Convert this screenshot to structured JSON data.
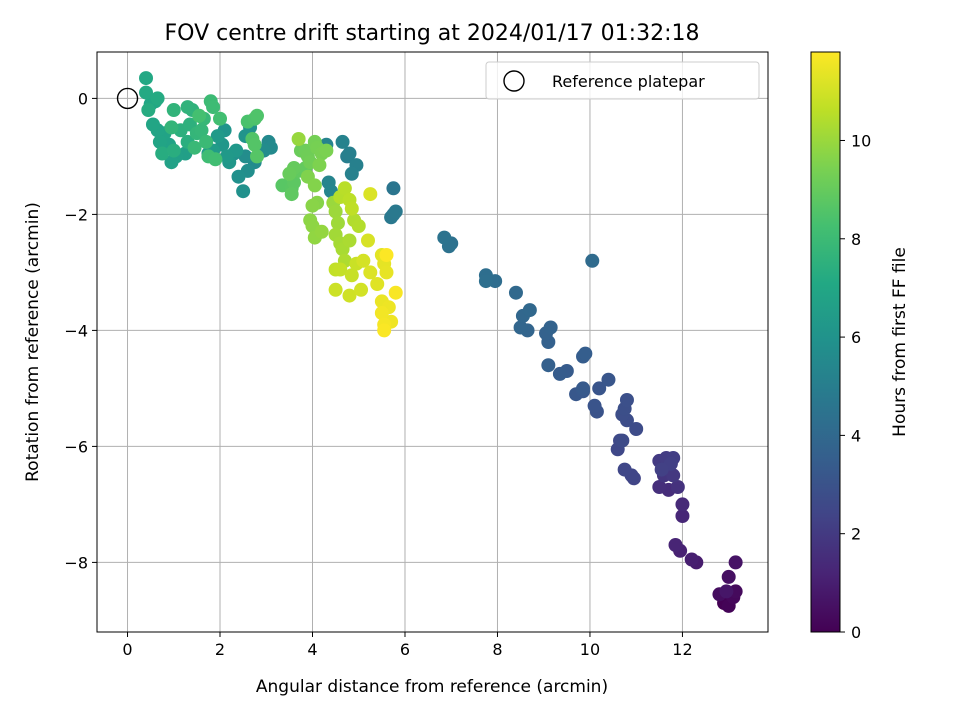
{
  "chart_data": {
    "type": "scatter",
    "title": "FOV centre drift starting at 2024/01/17 01:32:18",
    "xlabel": "Angular distance from reference (arcmin)",
    "ylabel": "Rotation from reference (arcmin)",
    "xlim": [
      -0.66,
      13.85
    ],
    "ylim": [
      -9.2,
      0.8
    ],
    "xticks": [
      0,
      2,
      4,
      6,
      8,
      10,
      12
    ],
    "yticks": [
      0,
      -2,
      -4,
      -6,
      -8
    ],
    "grid": true,
    "legend": {
      "placement": "top-right",
      "label": "Reference platepar"
    },
    "reference_point": {
      "x": 0,
      "y": 0
    },
    "colorbar": {
      "label": "Hours from first FF file",
      "range": [
        0,
        11.8
      ],
      "ticks": [
        0,
        2,
        4,
        6,
        8,
        10
      ],
      "colormap": "viridis"
    },
    "points": [
      {
        "x": 12.9,
        "y": -8.7,
        "t": 0.0
      },
      {
        "x": 13.0,
        "y": -8.75,
        "t": 0.1
      },
      {
        "x": 13.1,
        "y": -8.6,
        "t": 0.2
      },
      {
        "x": 13.15,
        "y": -8.5,
        "t": 0.3
      },
      {
        "x": 12.8,
        "y": -8.55,
        "t": 0.4
      },
      {
        "x": 13.0,
        "y": -8.25,
        "t": 0.5
      },
      {
        "x": 13.15,
        "y": -8.0,
        "t": 0.6
      },
      {
        "x": 12.95,
        "y": -8.5,
        "t": 0.7
      },
      {
        "x": 12.3,
        "y": -8.0,
        "t": 0.9
      },
      {
        "x": 12.2,
        "y": -7.95,
        "t": 1.0
      },
      {
        "x": 11.95,
        "y": -7.8,
        "t": 1.1
      },
      {
        "x": 11.85,
        "y": -7.7,
        "t": 1.2
      },
      {
        "x": 12.0,
        "y": -7.2,
        "t": 1.3
      },
      {
        "x": 12.0,
        "y": -7.0,
        "t": 1.4
      },
      {
        "x": 11.7,
        "y": -6.75,
        "t": 1.5
      },
      {
        "x": 11.5,
        "y": -6.7,
        "t": 1.6
      },
      {
        "x": 11.9,
        "y": -6.7,
        "t": 1.7
      },
      {
        "x": 11.6,
        "y": -6.5,
        "t": 1.8
      },
      {
        "x": 11.8,
        "y": -6.5,
        "t": 1.9
      },
      {
        "x": 11.5,
        "y": -6.25,
        "t": 2.0
      },
      {
        "x": 11.65,
        "y": -6.2,
        "t": 2.1
      },
      {
        "x": 11.8,
        "y": -6.2,
        "t": 2.15
      },
      {
        "x": 11.75,
        "y": -6.3,
        "t": 2.2
      },
      {
        "x": 11.55,
        "y": -6.4,
        "t": 2.25
      },
      {
        "x": 10.95,
        "y": -6.55,
        "t": 2.4
      },
      {
        "x": 10.9,
        "y": -6.5,
        "t": 2.45
      },
      {
        "x": 10.75,
        "y": -6.4,
        "t": 2.5
      },
      {
        "x": 10.6,
        "y": -6.05,
        "t": 2.55
      },
      {
        "x": 10.65,
        "y": -5.9,
        "t": 2.6
      },
      {
        "x": 10.7,
        "y": -5.9,
        "t": 2.65
      },
      {
        "x": 11.0,
        "y": -5.7,
        "t": 2.7
      },
      {
        "x": 10.8,
        "y": -5.55,
        "t": 2.75
      },
      {
        "x": 10.7,
        "y": -5.45,
        "t": 2.8
      },
      {
        "x": 10.75,
        "y": -5.35,
        "t": 2.85
      },
      {
        "x": 10.8,
        "y": -5.2,
        "t": 2.9
      },
      {
        "x": 10.15,
        "y": -5.4,
        "t": 3.0
      },
      {
        "x": 10.1,
        "y": -5.3,
        "t": 3.05
      },
      {
        "x": 10.2,
        "y": -5.0,
        "t": 3.1
      },
      {
        "x": 10.4,
        "y": -4.85,
        "t": 3.15
      },
      {
        "x": 9.7,
        "y": -5.1,
        "t": 3.2
      },
      {
        "x": 9.85,
        "y": -5.05,
        "t": 3.25
      },
      {
        "x": 9.85,
        "y": -5.0,
        "t": 3.3
      },
      {
        "x": 9.5,
        "y": -4.7,
        "t": 3.35
      },
      {
        "x": 9.35,
        "y": -4.75,
        "t": 3.4
      },
      {
        "x": 9.85,
        "y": -4.45,
        "t": 3.45
      },
      {
        "x": 9.9,
        "y": -4.4,
        "t": 3.5
      },
      {
        "x": 9.1,
        "y": -4.6,
        "t": 3.6
      },
      {
        "x": 9.1,
        "y": -4.2,
        "t": 3.65
      },
      {
        "x": 9.05,
        "y": -4.05,
        "t": 3.7
      },
      {
        "x": 9.15,
        "y": -3.95,
        "t": 3.75
      },
      {
        "x": 8.65,
        "y": -4.0,
        "t": 3.8
      },
      {
        "x": 8.5,
        "y": -3.95,
        "t": 3.85
      },
      {
        "x": 8.55,
        "y": -3.75,
        "t": 3.9
      },
      {
        "x": 8.7,
        "y": -3.65,
        "t": 3.95
      },
      {
        "x": 8.4,
        "y": -3.35,
        "t": 4.0
      },
      {
        "x": 10.05,
        "y": -2.8,
        "t": 4.1
      },
      {
        "x": 7.95,
        "y": -3.15,
        "t": 4.2
      },
      {
        "x": 7.75,
        "y": -3.05,
        "t": 4.25
      },
      {
        "x": 7.75,
        "y": -3.15,
        "t": 4.3
      },
      {
        "x": 7.0,
        "y": -2.5,
        "t": 4.4
      },
      {
        "x": 6.95,
        "y": -2.55,
        "t": 4.45
      },
      {
        "x": 6.85,
        "y": -2.4,
        "t": 4.5
      },
      {
        "x": 5.75,
        "y": -1.55,
        "t": 4.6
      },
      {
        "x": 5.75,
        "y": -2.0,
        "t": 4.65
      },
      {
        "x": 5.7,
        "y": -2.05,
        "t": 4.7
      },
      {
        "x": 5.8,
        "y": -1.95,
        "t": 4.75
      },
      {
        "x": 4.75,
        "y": -1.0,
        "t": 5.0
      },
      {
        "x": 4.8,
        "y": -0.95,
        "t": 5.05
      },
      {
        "x": 4.95,
        "y": -1.15,
        "t": 5.1
      },
      {
        "x": 4.85,
        "y": -1.3,
        "t": 5.15
      },
      {
        "x": 4.65,
        "y": -0.75,
        "t": 5.2
      },
      {
        "x": 4.3,
        "y": -0.8,
        "t": 5.25
      },
      {
        "x": 4.35,
        "y": -1.45,
        "t": 5.3
      },
      {
        "x": 4.4,
        "y": -1.6,
        "t": 5.35
      },
      {
        "x": 3.05,
        "y": -0.75,
        "t": 5.5
      },
      {
        "x": 3.1,
        "y": -0.85,
        "t": 5.55
      },
      {
        "x": 2.75,
        "y": -1.1,
        "t": 5.6
      },
      {
        "x": 2.95,
        "y": -0.9,
        "t": 5.65
      },
      {
        "x": 2.55,
        "y": -1.0,
        "t": 5.7
      },
      {
        "x": 2.6,
        "y": -1.25,
        "t": 5.75
      },
      {
        "x": 2.3,
        "y": -0.95,
        "t": 5.8
      },
      {
        "x": 2.4,
        "y": -1.35,
        "t": 5.85
      },
      {
        "x": 2.5,
        "y": -1.6,
        "t": 5.9
      },
      {
        "x": 2.65,
        "y": -0.5,
        "t": 6.0
      },
      {
        "x": 2.55,
        "y": -0.65,
        "t": 6.05
      },
      {
        "x": 2.1,
        "y": -0.55,
        "t": 6.1
      },
      {
        "x": 2.05,
        "y": -0.8,
        "t": 6.15
      },
      {
        "x": 2.2,
        "y": -1.1,
        "t": 6.2
      },
      {
        "x": 2.35,
        "y": -0.9,
        "t": 6.25
      },
      {
        "x": 2.15,
        "y": -1.0,
        "t": 6.3
      },
      {
        "x": 1.95,
        "y": -0.65,
        "t": 6.35
      },
      {
        "x": 1.75,
        "y": -0.95,
        "t": 6.4
      },
      {
        "x": 1.85,
        "y": -0.9,
        "t": 6.45
      },
      {
        "x": 1.25,
        "y": -0.95,
        "t": 6.6
      },
      {
        "x": 1.05,
        "y": -1.0,
        "t": 6.65
      },
      {
        "x": 0.95,
        "y": -1.1,
        "t": 6.7
      },
      {
        "x": 0.9,
        "y": -0.8,
        "t": 6.75
      },
      {
        "x": 0.8,
        "y": -0.6,
        "t": 6.8
      },
      {
        "x": 0.65,
        "y": -0.55,
        "t": 6.85
      },
      {
        "x": 0.7,
        "y": -0.75,
        "t": 6.9
      },
      {
        "x": 0.55,
        "y": -0.45,
        "t": 6.95
      },
      {
        "x": 0.5,
        "y": -0.1,
        "t": 7.0
      },
      {
        "x": 0.6,
        "y": -0.05,
        "t": 7.05
      },
      {
        "x": 0.4,
        "y": 0.35,
        "t": 7.1
      },
      {
        "x": 0.4,
        "y": 0.1,
        "t": 7.15
      },
      {
        "x": 0.65,
        "y": 0.0,
        "t": 7.2
      },
      {
        "x": 0.45,
        "y": -0.2,
        "t": 7.25
      },
      {
        "x": 0.75,
        "y": -0.95,
        "t": 7.3
      },
      {
        "x": 1.0,
        "y": -0.9,
        "t": 7.35
      },
      {
        "x": 1.3,
        "y": -0.75,
        "t": 7.4
      },
      {
        "x": 1.15,
        "y": -0.55,
        "t": 7.45
      },
      {
        "x": 1.35,
        "y": -0.45,
        "t": 7.5
      },
      {
        "x": 1.4,
        "y": -0.2,
        "t": 7.55
      },
      {
        "x": 1.3,
        "y": -0.15,
        "t": 7.6
      },
      {
        "x": 1.0,
        "y": -0.2,
        "t": 7.65
      },
      {
        "x": 0.95,
        "y": -0.5,
        "t": 7.7
      },
      {
        "x": 1.5,
        "y": -0.6,
        "t": 7.75
      },
      {
        "x": 1.6,
        "y": -0.55,
        "t": 7.8
      },
      {
        "x": 1.65,
        "y": -0.35,
        "t": 7.85
      },
      {
        "x": 1.45,
        "y": -0.85,
        "t": 7.9
      },
      {
        "x": 1.7,
        "y": -0.75,
        "t": 7.95
      },
      {
        "x": 1.8,
        "y": -0.05,
        "t": 8.0
      },
      {
        "x": 1.85,
        "y": -0.15,
        "t": 8.05
      },
      {
        "x": 1.75,
        "y": -1.0,
        "t": 8.1
      },
      {
        "x": 1.9,
        "y": -1.05,
        "t": 8.15
      },
      {
        "x": 2.0,
        "y": -0.35,
        "t": 8.2
      },
      {
        "x": 1.55,
        "y": -0.3,
        "t": 8.25
      },
      {
        "x": 2.6,
        "y": -0.4,
        "t": 8.4
      },
      {
        "x": 2.75,
        "y": -0.35,
        "t": 8.45
      },
      {
        "x": 2.8,
        "y": -0.3,
        "t": 8.5
      },
      {
        "x": 2.7,
        "y": -0.7,
        "t": 8.55
      },
      {
        "x": 2.75,
        "y": -0.8,
        "t": 8.6
      },
      {
        "x": 2.8,
        "y": -1.0,
        "t": 8.65
      },
      {
        "x": 3.35,
        "y": -1.5,
        "t": 8.7
      },
      {
        "x": 3.55,
        "y": -1.55,
        "t": 8.75
      },
      {
        "x": 3.6,
        "y": -1.45,
        "t": 8.8
      },
      {
        "x": 3.55,
        "y": -1.65,
        "t": 8.85
      },
      {
        "x": 3.7,
        "y": -1.25,
        "t": 8.9
      },
      {
        "x": 3.85,
        "y": -1.2,
        "t": 8.95
      },
      {
        "x": 3.6,
        "y": -1.2,
        "t": 9.0
      },
      {
        "x": 3.5,
        "y": -1.3,
        "t": 9.05
      },
      {
        "x": 3.75,
        "y": -0.9,
        "t": 9.1
      },
      {
        "x": 3.85,
        "y": -0.9,
        "t": 9.15
      },
      {
        "x": 3.9,
        "y": -1.0,
        "t": 9.2
      },
      {
        "x": 3.95,
        "y": -1.1,
        "t": 9.25
      },
      {
        "x": 4.05,
        "y": -0.75,
        "t": 9.3
      },
      {
        "x": 4.1,
        "y": -0.85,
        "t": 9.35
      },
      {
        "x": 4.2,
        "y": -0.95,
        "t": 9.4
      },
      {
        "x": 4.3,
        "y": -0.9,
        "t": 9.45
      },
      {
        "x": 4.15,
        "y": -1.15,
        "t": 9.5
      },
      {
        "x": 3.9,
        "y": -1.35,
        "t": 9.55
      },
      {
        "x": 4.05,
        "y": -1.5,
        "t": 9.6
      },
      {
        "x": 4.1,
        "y": -1.8,
        "t": 9.65
      },
      {
        "x": 4.0,
        "y": -1.85,
        "t": 9.7
      },
      {
        "x": 3.95,
        "y": -2.1,
        "t": 9.75
      },
      {
        "x": 4.0,
        "y": -2.2,
        "t": 9.8
      },
      {
        "x": 4.05,
        "y": -2.4,
        "t": 9.85
      },
      {
        "x": 4.2,
        "y": -2.3,
        "t": 9.9
      },
      {
        "x": 3.7,
        "y": -0.7,
        "t": 9.95
      },
      {
        "x": 4.45,
        "y": -1.8,
        "t": 10.0
      },
      {
        "x": 4.5,
        "y": -1.95,
        "t": 10.05
      },
      {
        "x": 4.55,
        "y": -2.15,
        "t": 10.1
      },
      {
        "x": 4.5,
        "y": -2.35,
        "t": 10.15
      },
      {
        "x": 4.6,
        "y": -2.5,
        "t": 10.2
      },
      {
        "x": 4.65,
        "y": -2.6,
        "t": 10.25
      },
      {
        "x": 4.8,
        "y": -2.45,
        "t": 10.3
      },
      {
        "x": 4.7,
        "y": -2.8,
        "t": 10.35
      },
      {
        "x": 4.9,
        "y": -2.1,
        "t": 10.4
      },
      {
        "x": 5.0,
        "y": -2.2,
        "t": 10.45
      },
      {
        "x": 4.6,
        "y": -1.7,
        "t": 10.5
      },
      {
        "x": 4.7,
        "y": -1.55,
        "t": 10.55
      },
      {
        "x": 4.8,
        "y": -1.75,
        "t": 10.6
      },
      {
        "x": 4.85,
        "y": -1.9,
        "t": 10.65
      },
      {
        "x": 4.5,
        "y": -2.95,
        "t": 10.7
      },
      {
        "x": 4.6,
        "y": -2.95,
        "t": 10.75
      },
      {
        "x": 4.85,
        "y": -3.05,
        "t": 10.8
      },
      {
        "x": 4.95,
        "y": -2.85,
        "t": 10.85
      },
      {
        "x": 4.5,
        "y": -3.3,
        "t": 10.9
      },
      {
        "x": 4.8,
        "y": -3.4,
        "t": 10.95
      },
      {
        "x": 5.05,
        "y": -3.3,
        "t": 11.0
      },
      {
        "x": 5.1,
        "y": -2.8,
        "t": 11.05
      },
      {
        "x": 5.2,
        "y": -2.45,
        "t": 11.1
      },
      {
        "x": 5.25,
        "y": -1.65,
        "t": 11.15
      },
      {
        "x": 5.25,
        "y": -3.0,
        "t": 11.2
      },
      {
        "x": 5.4,
        "y": -3.2,
        "t": 11.25
      },
      {
        "x": 5.5,
        "y": -2.7,
        "t": 11.3
      },
      {
        "x": 5.55,
        "y": -2.85,
        "t": 11.35
      },
      {
        "x": 5.6,
        "y": -3.0,
        "t": 11.4
      },
      {
        "x": 5.5,
        "y": -3.5,
        "t": 11.45
      },
      {
        "x": 5.65,
        "y": -3.6,
        "t": 11.5
      },
      {
        "x": 5.7,
        "y": -3.85,
        "t": 11.55
      },
      {
        "x": 5.5,
        "y": -3.7,
        "t": 11.6
      },
      {
        "x": 5.55,
        "y": -3.9,
        "t": 11.65
      },
      {
        "x": 5.8,
        "y": -3.35,
        "t": 11.7
      },
      {
        "x": 5.55,
        "y": -4.0,
        "t": 11.75
      },
      {
        "x": 5.6,
        "y": -2.7,
        "t": 11.78
      }
    ]
  }
}
